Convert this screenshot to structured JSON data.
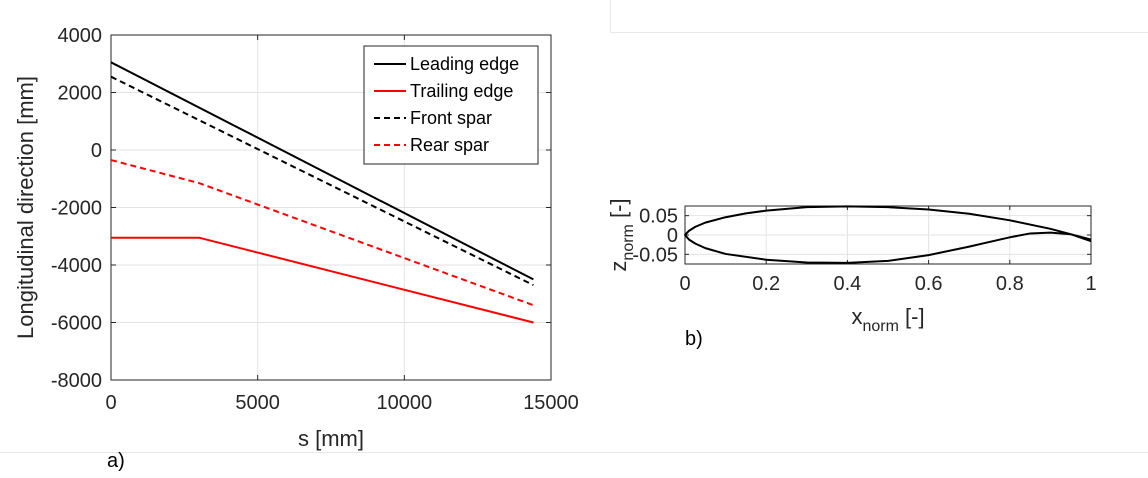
{
  "chart_data": [
    {
      "type": "line",
      "panel_label": "a)",
      "xlabel": "s [mm]",
      "ylabel": "Longitudinal direction [mm]",
      "xlim": [
        0,
        15000
      ],
      "ylim": [
        -8000,
        4000
      ],
      "xticks": [
        "0",
        "5000",
        "10000",
        "15000"
      ],
      "yticks": [
        "4000",
        "2000",
        "0",
        "-2000",
        "-4000",
        "-6000",
        "-8000"
      ],
      "grid": true,
      "legend_position": "top-right",
      "series": [
        {
          "name": "Leading edge",
          "color": "#000000",
          "style": "solid",
          "x": [
            0,
            14400
          ],
          "y": [
            3050,
            -4500
          ]
        },
        {
          "name": "Trailing edge",
          "color": "#ff0000",
          "style": "solid",
          "x": [
            0,
            3000,
            14400
          ],
          "y": [
            -3050,
            -3050,
            -6000
          ]
        },
        {
          "name": "Front spar",
          "color": "#000000",
          "style": "dashed",
          "x": [
            0,
            14400
          ],
          "y": [
            2550,
            -4700
          ]
        },
        {
          "name": "Rear spar",
          "color": "#ff0000",
          "style": "dashed",
          "x": [
            0,
            3000,
            14400
          ],
          "y": [
            -350,
            -1150,
            -5400
          ]
        }
      ]
    },
    {
      "type": "line",
      "panel_label": "b)",
      "xlabel_main": "x",
      "xlabel_sub": "norm",
      "xlabel_unit": " [-]",
      "ylabel_main": "z",
      "ylabel_sub": "norm",
      "ylabel_unit": " [-]",
      "xlim": [
        0,
        1
      ],
      "ylim": [
        -0.075,
        0.075
      ],
      "xticks": [
        "0",
        "0.2",
        "0.4",
        "0.6",
        "0.8",
        "1"
      ],
      "yticks": [
        "0.05",
        "0",
        "-0.05"
      ],
      "grid": true,
      "series": [
        {
          "color": "#000000",
          "style": "solid",
          "x": [
            1.0,
            0.95,
            0.9,
            0.8,
            0.7,
            0.6,
            0.5,
            0.4,
            0.3,
            0.2,
            0.15,
            0.1,
            0.05,
            0.025,
            0.01,
            0.0,
            0.01,
            0.025,
            0.05,
            0.1,
            0.2,
            0.3,
            0.4,
            0.5,
            0.6,
            0.7,
            0.75,
            0.8,
            0.85,
            0.9,
            0.95,
            1.0
          ],
          "y": [
            -0.012,
            0.002,
            0.016,
            0.038,
            0.055,
            0.066,
            0.072,
            0.074,
            0.072,
            0.063,
            0.056,
            0.046,
            0.032,
            0.021,
            0.011,
            0.0,
            -0.012,
            -0.022,
            -0.034,
            -0.049,
            -0.064,
            -0.071,
            -0.072,
            -0.067,
            -0.052,
            -0.03,
            -0.018,
            -0.006,
            0.004,
            0.006,
            0.002,
            -0.016
          ]
        }
      ]
    }
  ]
}
